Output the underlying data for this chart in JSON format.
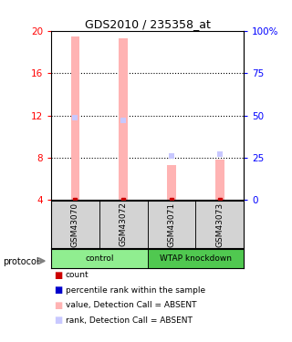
{
  "title": "GDS2010 / 235358_at",
  "samples": [
    "GSM43070",
    "GSM43072",
    "GSM43071",
    "GSM43073"
  ],
  "groups": [
    "control",
    "control",
    "WTAP knockdown",
    "WTAP knockdown"
  ],
  "bar_values": [
    19.5,
    19.3,
    7.3,
    7.8
  ],
  "rank_values": [
    11.8,
    11.5,
    8.2,
    8.3
  ],
  "bar_color_absent": "#FFB3B3",
  "rank_color_absent": "#C8C8FF",
  "count_color": "#CC0000",
  "rank_color": "#0000CC",
  "bar_bottom": 4.0,
  "ylim_left": [
    4,
    20
  ],
  "ylim_right": [
    0,
    100
  ],
  "left_ticks": [
    4,
    8,
    12,
    16,
    20
  ],
  "right_ticks": [
    0,
    25,
    50,
    75,
    100
  ],
  "right_tick_labels": [
    "0",
    "25",
    "50",
    "75",
    "100%"
  ],
  "group_colors": {
    "control": "#90EE90",
    "WTAP knockdown": "#50C850"
  },
  "dotted_line_color": "#000000",
  "background_color": "#FFFFFF",
  "bar_width": 0.18,
  "group_sections": [
    [
      0,
      1,
      "control"
    ],
    [
      2,
      3,
      "WTAP knockdown"
    ]
  ],
  "legend_items": [
    {
      "color": "#CC0000",
      "label": "count"
    },
    {
      "color": "#0000CC",
      "label": "percentile rank within the sample"
    },
    {
      "color": "#FFB3B3",
      "label": "value, Detection Call = ABSENT"
    },
    {
      "color": "#C8C8FF",
      "label": "rank, Detection Call = ABSENT"
    }
  ]
}
